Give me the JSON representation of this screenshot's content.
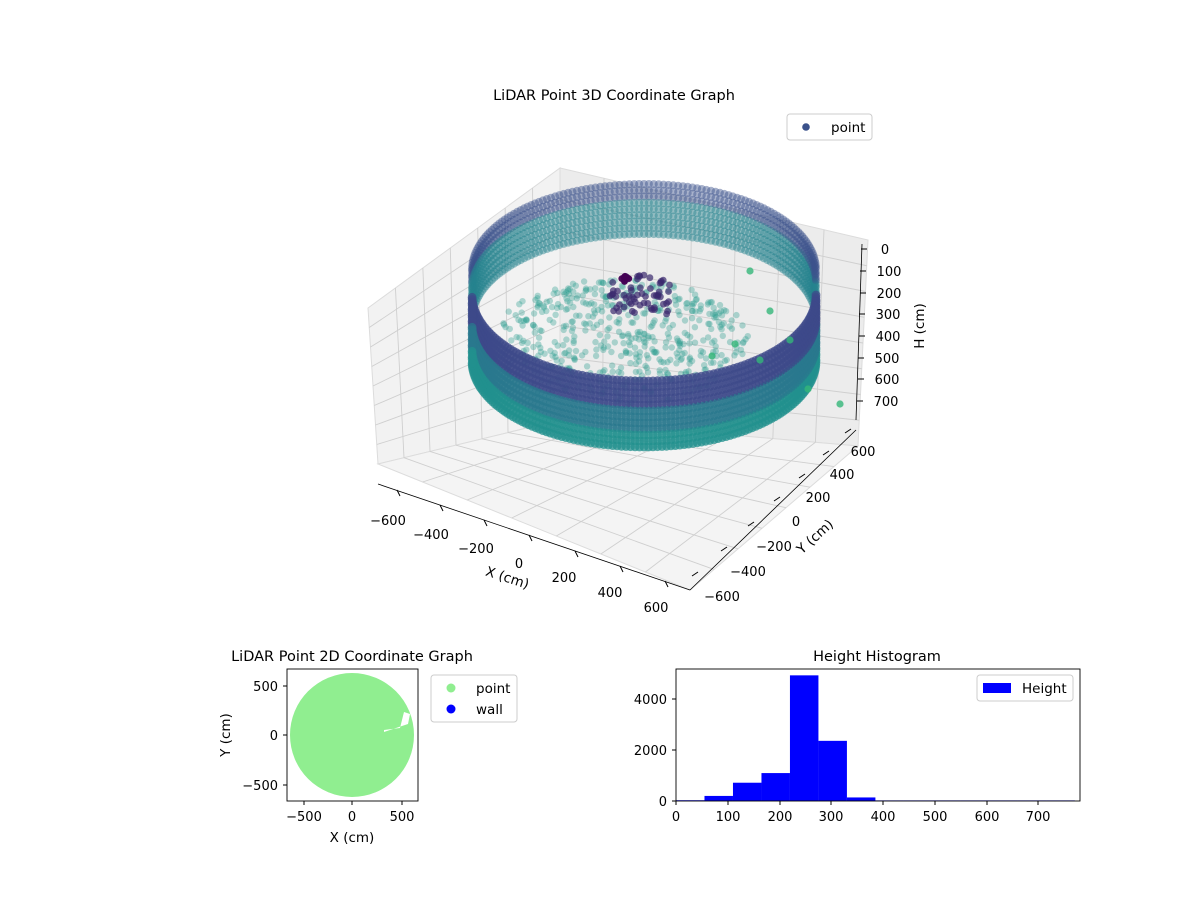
{
  "chart_data": [
    {
      "type": "scatter",
      "title": "LiDAR Point 3D Coordinate Graph",
      "xlabel": "X (cm)",
      "ylabel": "Y (cm)",
      "zlabel": "H (cm)",
      "xlim": [
        -650,
        650
      ],
      "ylim": [
        -650,
        650
      ],
      "zlim": [
        750,
        0
      ],
      "x_ticks": [
        "−600",
        "−400",
        "−200",
        "0",
        "200",
        "400",
        "600"
      ],
      "y_ticks": [
        "−600",
        "−400",
        "−200",
        "0",
        "200",
        "400",
        "600"
      ],
      "z_ticks": [
        "0",
        "100",
        "200",
        "300",
        "400",
        "500",
        "600",
        "700"
      ],
      "legend": [
        {
          "label": "point",
          "color": "#3b528b"
        }
      ],
      "legend_position": "upper-right",
      "grid": true,
      "colormap": "viridis",
      "series": [
        {
          "name": "point",
          "shape": "cylindrical wall",
          "radius": 640,
          "z_range": [
            0,
            330
          ]
        },
        {
          "name": "point",
          "shape": "floor / interior points",
          "z_range": [
            200,
            330
          ]
        },
        {
          "name": "point",
          "shape": "outliers",
          "z_range": [
            400,
            740
          ]
        }
      ]
    },
    {
      "type": "scatter",
      "title": "LiDAR Point 2D Coordinate Graph",
      "xlabel": "X (cm)",
      "ylabel": "Y (cm)",
      "xlim": [
        -650,
        650
      ],
      "ylim": [
        -650,
        650
      ],
      "x_ticks": [
        "−500",
        "0",
        "500"
      ],
      "y_ticks": [
        "500",
        "0",
        "−500"
      ],
      "legend": [
        {
          "label": "point",
          "color": "#90ee90"
        },
        {
          "label": "wall",
          "color": "#0000ff"
        }
      ],
      "legend_position": "outside-right",
      "series": [
        {
          "name": "point",
          "shape": "filled disc",
          "center": [
            0,
            0
          ],
          "radius": 640
        }
      ]
    },
    {
      "type": "bar",
      "title": "Height Histogram",
      "xlabel": "",
      "ylabel": "",
      "xlim": [
        0,
        780
      ],
      "ylim": [
        0,
        5200
      ],
      "x_ticks": [
        "0",
        "100",
        "200",
        "300",
        "400",
        "500",
        "600",
        "700"
      ],
      "y_ticks": [
        "0",
        "2000",
        "4000"
      ],
      "legend": [
        {
          "label": "Height",
          "color": "#0000ff"
        }
      ],
      "legend_position": "top-right",
      "bin_edges": [
        0,
        55,
        110,
        165,
        220,
        275,
        330,
        385,
        440,
        495,
        550,
        605,
        660,
        715,
        770
      ],
      "values": [
        30,
        200,
        720,
        1100,
        4950,
        2370,
        140,
        20,
        10,
        5,
        5,
        3,
        3,
        3
      ],
      "color": "#0000ff"
    }
  ]
}
